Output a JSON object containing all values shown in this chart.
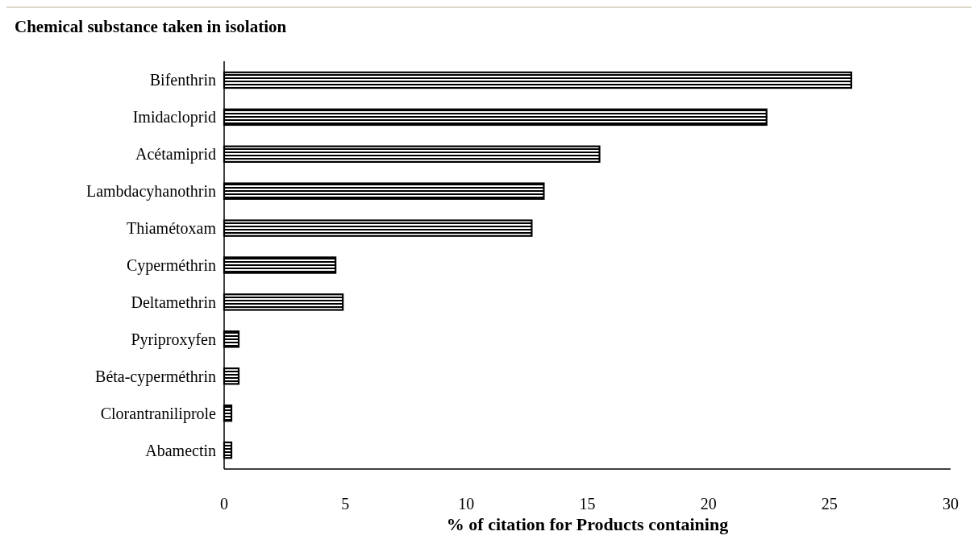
{
  "chart_data": {
    "type": "bar",
    "orientation": "horizontal",
    "title": "Chemical substance taken in isolation",
    "xlabel": "% of citation for Products containing",
    "categories": [
      "Bifenthrin",
      "Imidacloprid",
      "Acétamiprid",
      "Lambdacyhanothrin",
      "Thiamétoxam",
      "Cyperméthrin",
      "Deltamethrin",
      "Pyriproxyfen",
      "Béta-cyperméthrin",
      "Clorantraniliprole",
      "Abamectin"
    ],
    "values": [
      25.9,
      22.4,
      15.5,
      13.2,
      12.7,
      4.6,
      4.9,
      0.6,
      0.6,
      0.3,
      0.3
    ],
    "color": "#000000",
    "xlim": [
      0,
      30
    ],
    "xticks": [
      0,
      5,
      10,
      15,
      20,
      25,
      30
    ],
    "grid": false
  }
}
